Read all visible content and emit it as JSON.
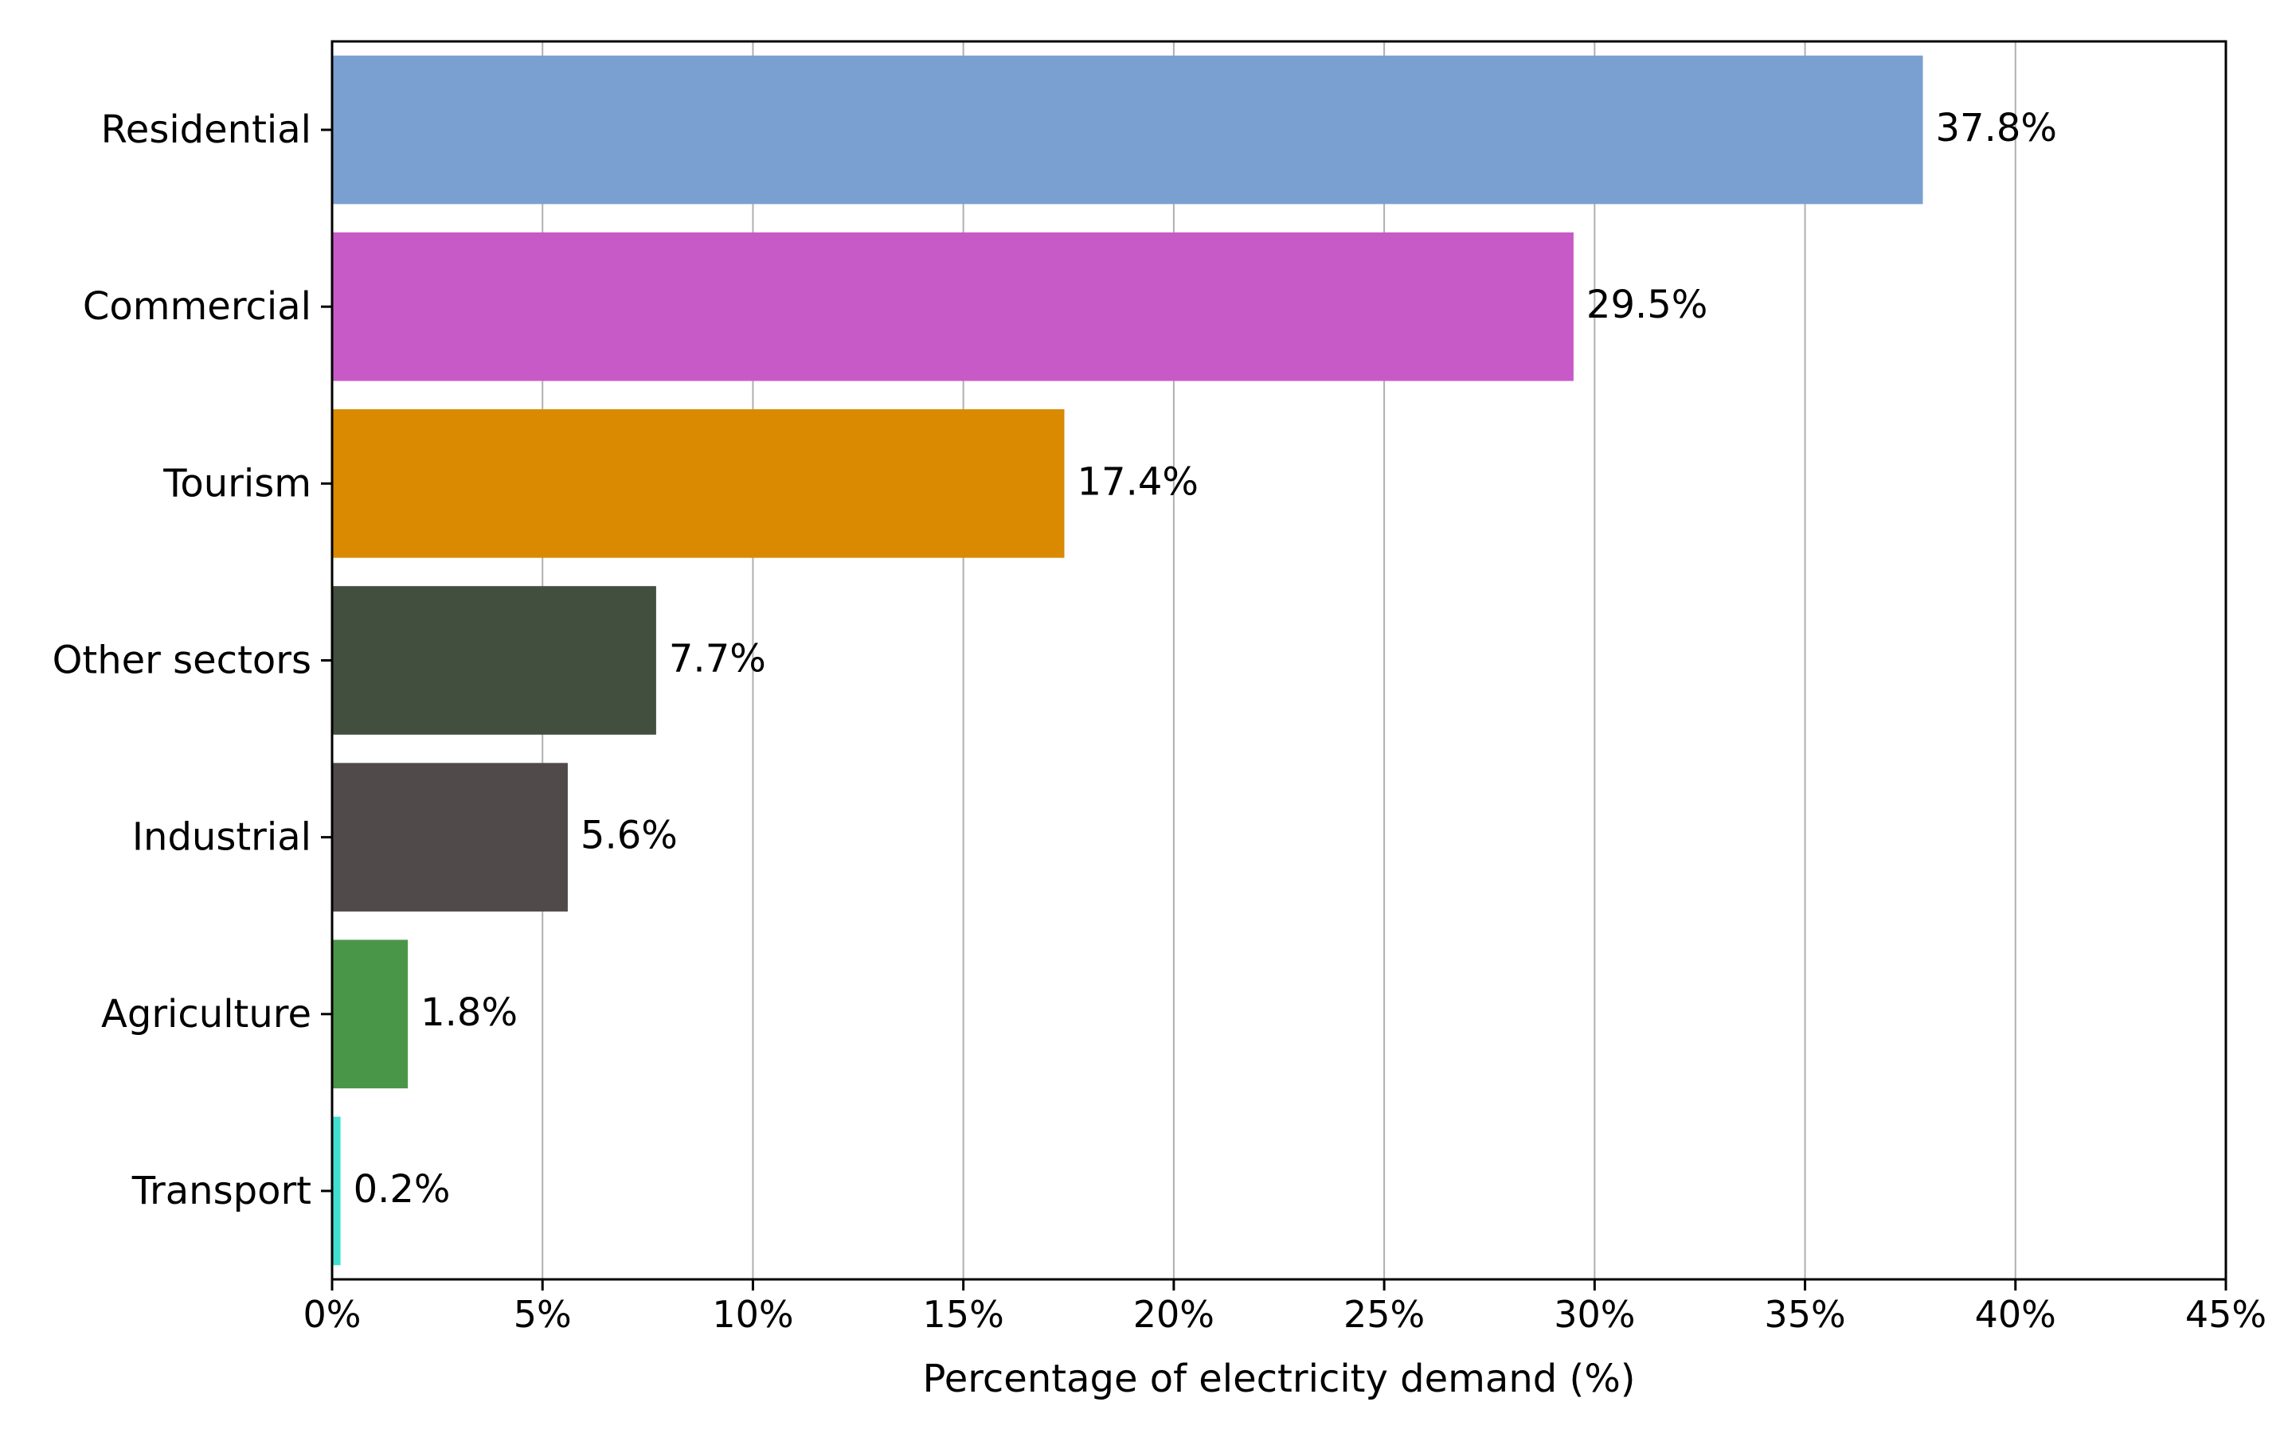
{
  "chart_data": {
    "type": "bar",
    "orientation": "horizontal",
    "categories": [
      "Residential",
      "Commercial",
      "Tourism",
      "Other sectors",
      "Industrial",
      "Agriculture",
      "Transport"
    ],
    "values": [
      37.8,
      29.5,
      17.4,
      7.7,
      5.6,
      1.8,
      0.2
    ],
    "data_labels": [
      "37.8%",
      "29.5%",
      "17.4%",
      "7.7%",
      "5.6%",
      "1.8%",
      "0.2%"
    ],
    "colors": [
      "#7aa0d1",
      "#c85ac8",
      "#d98a00",
      "#424f3e",
      "#514a4a",
      "#4a9648",
      "#40e0d0"
    ],
    "title": "",
    "xlabel": "Percentage of electricity demand (%)",
    "ylabel": "",
    "xlim": [
      0,
      45
    ],
    "x_ticks": [
      0,
      5,
      10,
      15,
      20,
      25,
      30,
      35,
      40,
      45
    ],
    "x_tick_labels": [
      "0%",
      "5%",
      "10%",
      "15%",
      "20%",
      "25%",
      "30%",
      "35%",
      "40%",
      "45%"
    ],
    "grid": "vertical"
  }
}
